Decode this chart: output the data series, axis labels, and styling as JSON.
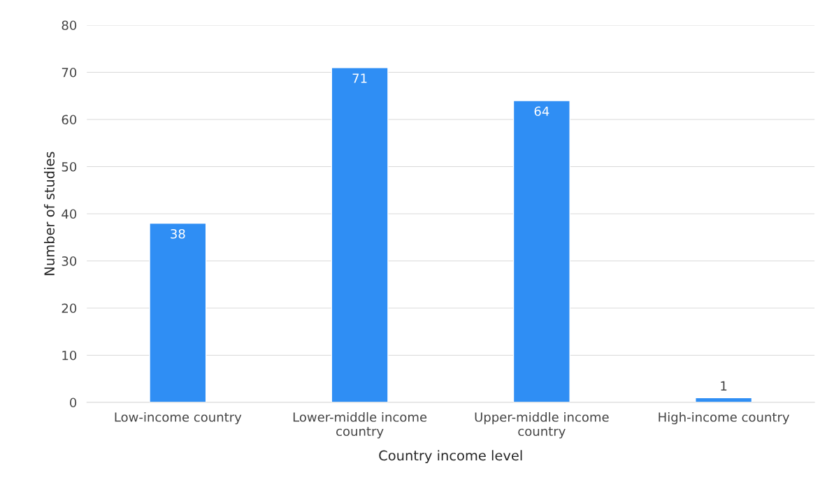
{
  "chart_data": {
    "type": "bar",
    "xlabel": "Country income level",
    "ylabel": "Number of studies",
    "categories": [
      "Low-income country",
      "Lower-middle income\ncountry",
      "Upper-middle income\ncountry",
      "High-income country"
    ],
    "values": [
      38,
      71,
      64,
      1
    ],
    "color": "#2f8ef4",
    "ylim": [
      0,
      80
    ],
    "yticks": [
      0,
      10,
      20,
      30,
      40,
      50,
      60,
      70,
      80
    ],
    "grid": "y",
    "data_labels": true
  }
}
